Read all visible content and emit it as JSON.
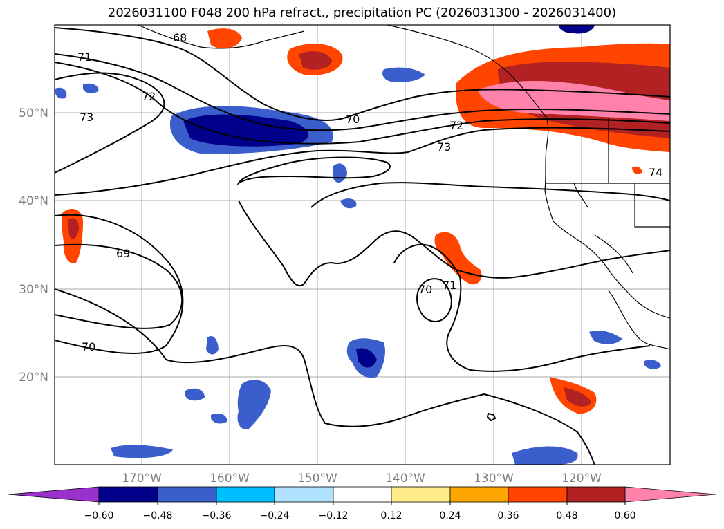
{
  "title": "2026031100 F048 200 hPa refract., precipitation PC (2026031300 - 2026031400)",
  "lat_labels": [
    "50°N",
    "40°N",
    "30°N",
    "20°N"
  ],
  "lon_labels": [
    "170°W",
    "160°W",
    "150°W",
    "140°W",
    "130°W",
    "120°W"
  ],
  "contour_labels": [
    "68",
    "71",
    "72",
    "73",
    "70",
    "72",
    "73",
    "69",
    "70",
    "71",
    "70",
    "74"
  ],
  "colorbar": {
    "tick_labels": [
      "−0.60",
      "−0.48",
      "−0.36",
      "−0.24",
      "−0.12",
      "0.12",
      "0.24",
      "0.36",
      "0.48",
      "0.60"
    ],
    "colors": [
      "#9932cc",
      "#00008b",
      "#3a5fcd",
      "#00bfff",
      "#b0e2ff",
      "#ffffff",
      "#ffec8b",
      "#ffa500",
      "#ff4500",
      "#b22222",
      "#ff82ab"
    ]
  },
  "colors": {
    "gridline": "#a9a9a9",
    "contour": "#000000",
    "tick_label": "#808080"
  }
}
